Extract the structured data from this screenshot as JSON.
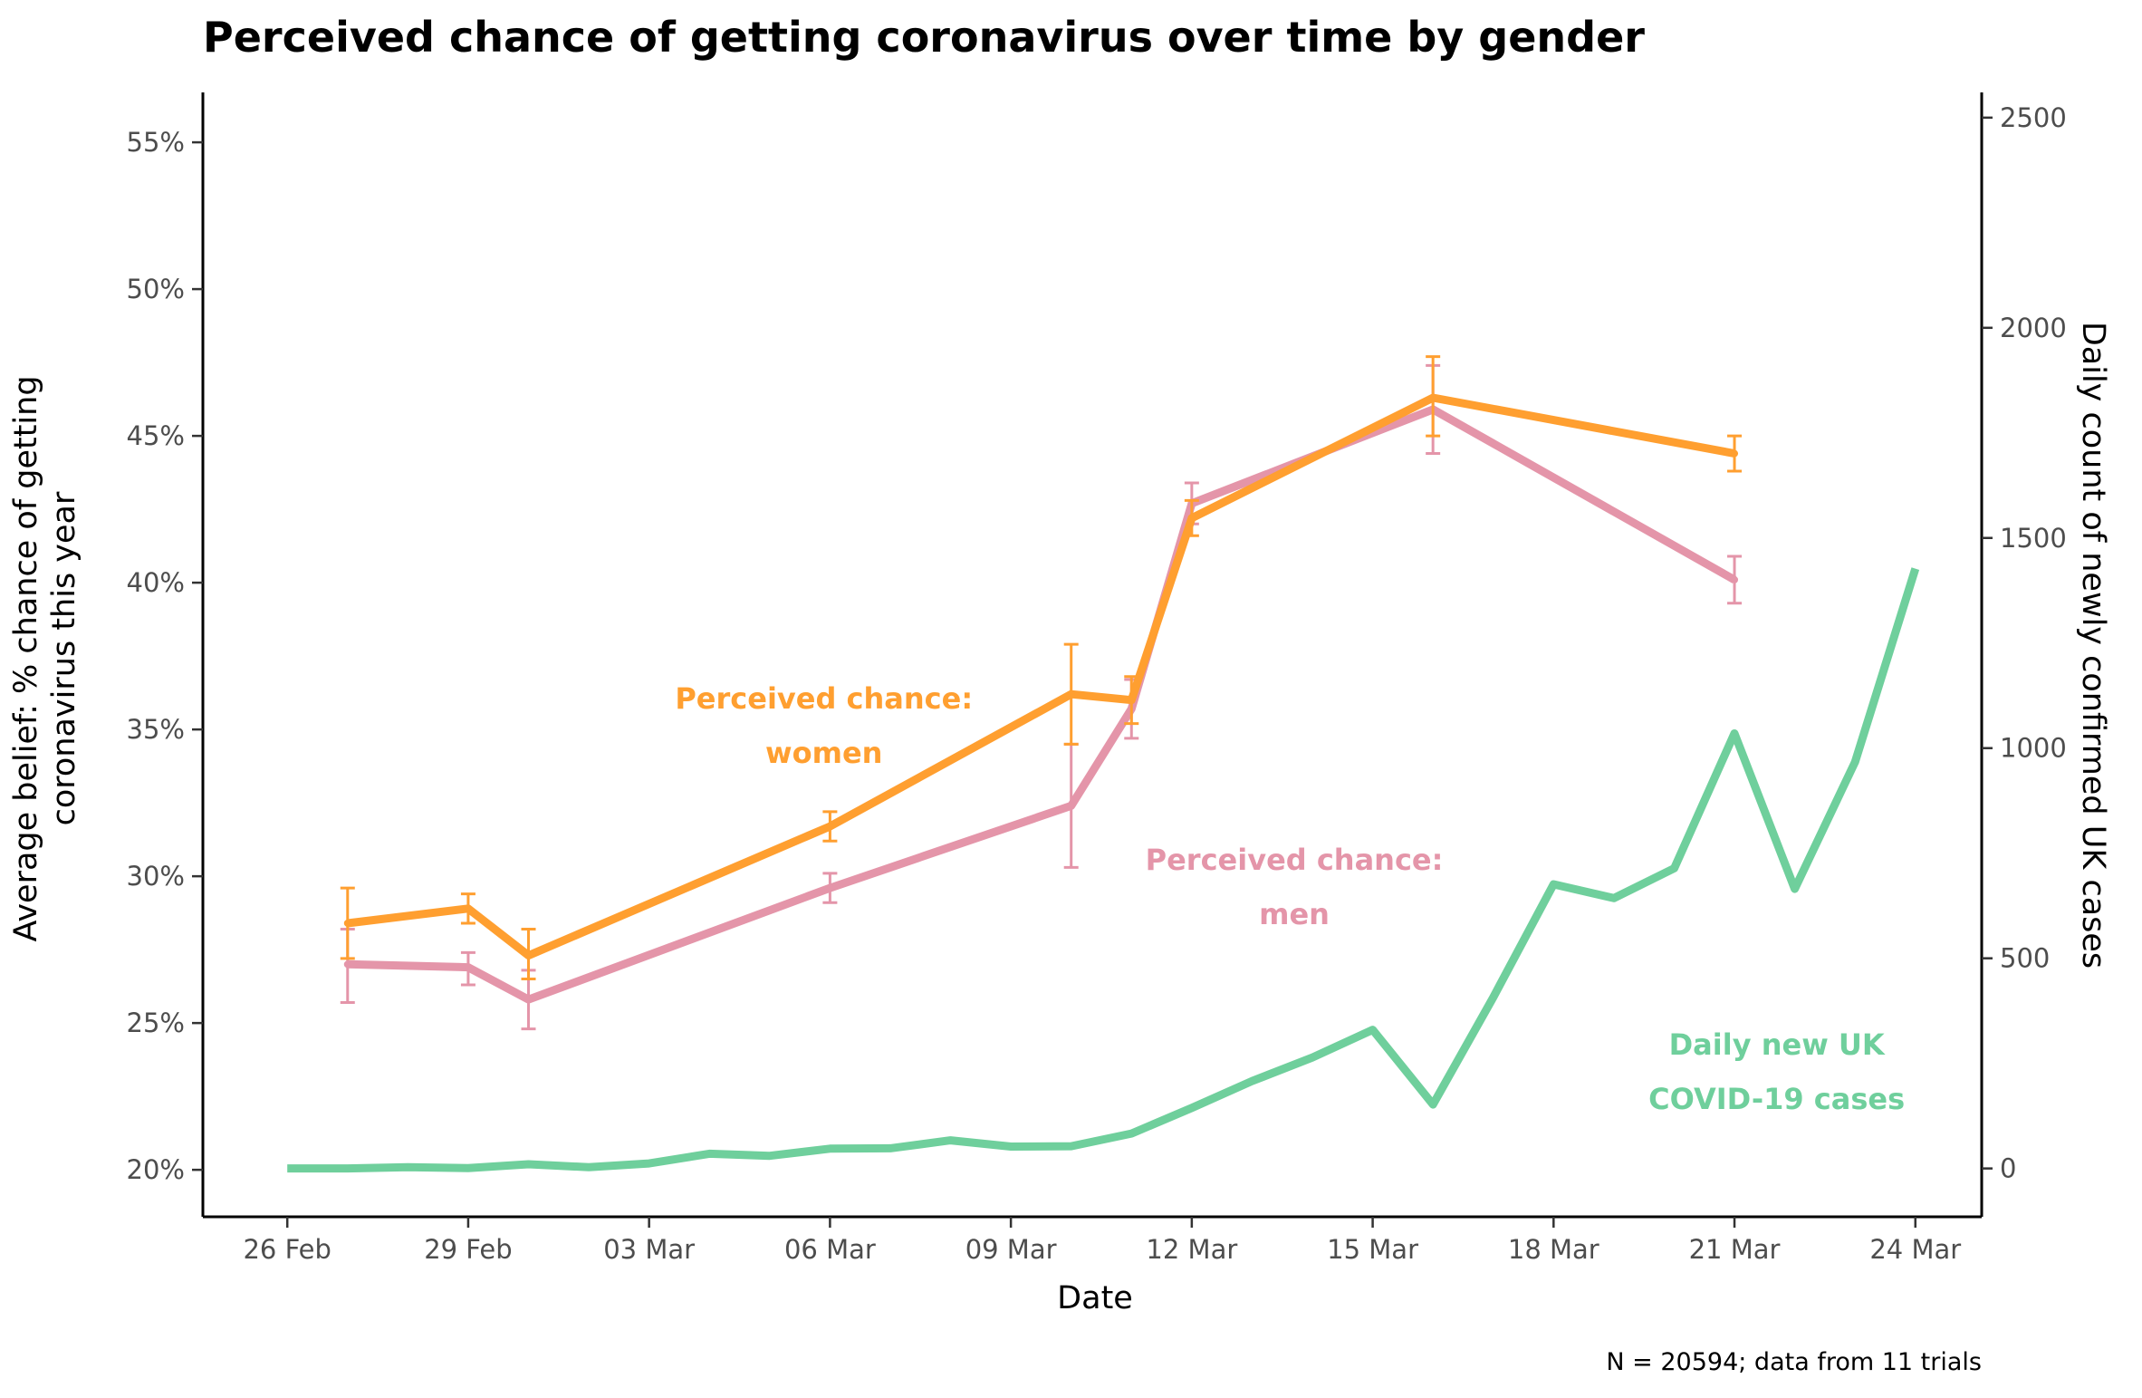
{
  "chart_data": {
    "type": "line",
    "title": "Perceived chance of getting coronavirus over time by gender",
    "xlabel": "Date",
    "ylabel_left": [
      "Average belief: % chance of getting",
      "coronavirus this year"
    ],
    "ylabel_right": "Daily count of newly confirmed UK cases",
    "caption": "N = 20594; data from 11 trials",
    "x_ticks": [
      "26 Feb",
      "29 Feb",
      "03 Mar",
      "06 Mar",
      "09 Mar",
      "12 Mar",
      "15 Mar",
      "18 Mar",
      "21 Mar",
      "24 Mar"
    ],
    "x_tick_days": [
      0,
      3,
      6,
      9,
      12,
      15,
      18,
      21,
      24,
      27
    ],
    "xlim_days": [
      -1.4,
      28.1
    ],
    "y_left": {
      "ticks": [
        20,
        25,
        30,
        35,
        40,
        45,
        50,
        55
      ],
      "tick_labels": [
        "20%",
        "25%",
        "30%",
        "35%",
        "40%",
        "45%",
        "50%",
        "55%"
      ],
      "ylim": [
        18.4,
        56.7
      ]
    },
    "y_right": {
      "ticks": [
        0,
        500,
        1000,
        1500,
        2000,
        2500
      ],
      "tick_labels": [
        "0",
        "500",
        "1000",
        "1500",
        "2000",
        "2500"
      ],
      "ylim": [
        -115,
        2560
      ]
    },
    "series": [
      {
        "name": "Perceived chance: women",
        "axis": "left",
        "color": "#ff9f30",
        "x_days": [
          1,
          3,
          4,
          9,
          13,
          14,
          15,
          19,
          24
        ],
        "y": [
          28.4,
          28.9,
          27.3,
          31.7,
          36.2,
          36.0,
          42.2,
          46.3,
          44.4
        ],
        "err_low": [
          27.2,
          28.4,
          26.5,
          31.2,
          34.5,
          35.2,
          41.6,
          45.0,
          43.8
        ],
        "err_high": [
          29.6,
          29.4,
          28.2,
          32.2,
          37.9,
          36.8,
          42.8,
          47.7,
          45.0
        ]
      },
      {
        "name": "Perceived chance: men",
        "axis": "left",
        "color": "#e495a9",
        "x_days": [
          1,
          3,
          4,
          9,
          13,
          14,
          15,
          19,
          24
        ],
        "y": [
          27.0,
          26.9,
          25.8,
          29.6,
          32.4,
          35.7,
          42.7,
          45.9,
          40.1
        ],
        "err_low": [
          25.7,
          26.3,
          24.8,
          29.1,
          30.3,
          34.7,
          42.0,
          44.4,
          39.3
        ],
        "err_high": [
          28.2,
          27.4,
          26.8,
          30.1,
          34.5,
          36.7,
          43.4,
          47.4,
          40.9
        ]
      },
      {
        "name": "Daily new UK COVID-19 cases",
        "axis": "right",
        "color": "#6fcf9c",
        "x_days": [
          0,
          1,
          2,
          3,
          4,
          5,
          6,
          7,
          8,
          9,
          10,
          11,
          12,
          13,
          14,
          15,
          16,
          17,
          18,
          19,
          20,
          21,
          22,
          23,
          24,
          25,
          26,
          27
        ],
        "y": [
          0,
          0,
          3,
          1,
          10,
          3,
          12,
          35,
          30,
          47,
          48,
          67,
          52,
          53,
          83,
          144,
          208,
          264,
          330,
          152,
          407,
          676,
          643,
          714,
          1035,
          665,
          967,
          1427
        ]
      }
    ],
    "annotations": [
      {
        "lines": [
          "Perceived chance:",
          "women"
        ],
        "color": "#ff9f30",
        "x_day": 8.9,
        "y_left": 35.1
      },
      {
        "lines": [
          "Perceived chance:",
          "men"
        ],
        "color": "#e495a9",
        "x_day": 16.7,
        "y_left": 29.6
      },
      {
        "lines": [
          "Daily new UK",
          "COVID-19 cases"
        ],
        "color": "#6fcf9c",
        "x_day": 24.7,
        "y_left": 23.3
      }
    ]
  }
}
